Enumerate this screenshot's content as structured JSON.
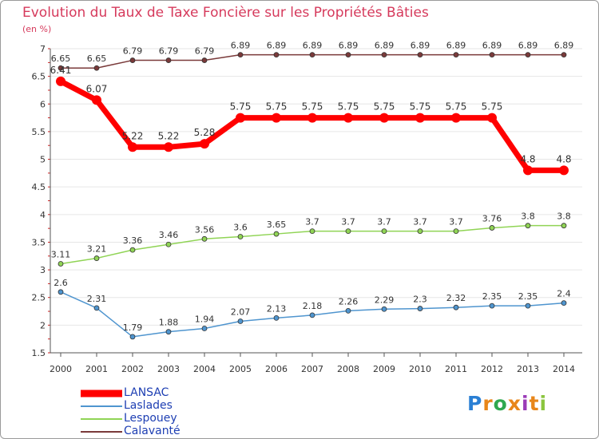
{
  "title": "Evolution du Taux de Taxe Foncière sur les Propriétés Bâties",
  "subtitle": "(en %)",
  "logo": {
    "letters": [
      "P",
      "r",
      "o",
      "x",
      "i",
      "t",
      "i"
    ],
    "colors": [
      "#2a7fd4",
      "#e8861a",
      "#2fa84f",
      "#e8861a",
      "#9b3bb8",
      "#e8861a",
      "#8bc53f"
    ]
  },
  "chart_data": {
    "type": "line",
    "title": "Evolution du Taux de Taxe Foncière sur les Propriétés Bâties",
    "ylabel": "(en %)",
    "xlabel": "",
    "x": [
      "2000",
      "2001",
      "2002",
      "2003",
      "2004",
      "2005",
      "2006",
      "2007",
      "2008",
      "2009",
      "2010",
      "2011",
      "2012",
      "2013",
      "2014"
    ],
    "ylim": [
      1.5,
      7
    ],
    "yticks": [
      "1.5",
      "2",
      "2.5",
      "3",
      "3.5",
      "4",
      "4.5",
      "5",
      "5.5",
      "6",
      "6.5",
      "7"
    ],
    "legend_position": "bottom-left",
    "series": [
      {
        "name": "LANSAC",
        "color": "#ff0000",
        "values": [
          6.41,
          6.07,
          5.22,
          5.22,
          5.28,
          5.75,
          5.75,
          5.75,
          5.75,
          5.75,
          5.75,
          5.75,
          5.75,
          4.8,
          4.8
        ],
        "labels": [
          "6.41",
          "6.07",
          "5.22",
          "5.22",
          "5.28",
          "5.75",
          "5.75",
          "5.75",
          "5.75",
          "5.75",
          "5.75",
          "5.75",
          "5.75",
          "4.8",
          "4.8"
        ]
      },
      {
        "name": "Laslades",
        "color": "#4f95cf",
        "values": [
          2.6,
          2.31,
          1.79,
          1.88,
          1.94,
          2.07,
          2.13,
          2.18,
          2.26,
          2.29,
          2.3,
          2.32,
          2.35,
          2.35,
          2.4
        ],
        "labels": [
          "2.6",
          "2.31",
          "1.79",
          "1.88",
          "1.94",
          "2.07",
          "2.13",
          "2.18",
          "2.26",
          "2.29",
          "2.3",
          "2.32",
          "2.35",
          "2.35",
          "2.4"
        ]
      },
      {
        "name": "Lespouey",
        "color": "#90d455",
        "values": [
          3.11,
          3.21,
          3.36,
          3.46,
          3.56,
          3.6,
          3.65,
          3.7,
          3.7,
          3.7,
          3.7,
          3.7,
          3.76,
          3.8,
          3.8
        ],
        "labels": [
          "3.11",
          "3.21",
          "3.36",
          "3.46",
          "3.56",
          "3.6",
          "3.65",
          "3.7",
          "3.7",
          "3.7",
          "3.7",
          "3.7",
          "3.76",
          "3.8",
          "3.8"
        ]
      },
      {
        "name": "Calavanté",
        "color": "#7a3a3a",
        "values": [
          6.65,
          6.65,
          6.79,
          6.79,
          6.79,
          6.89,
          6.89,
          6.89,
          6.89,
          6.89,
          6.89,
          6.89,
          6.89,
          6.89,
          6.89
        ],
        "labels": [
          "6.65",
          "6.65",
          "6.79",
          "6.79",
          "6.79",
          "6.89",
          "6.89",
          "6.89",
          "6.89",
          "6.89",
          "6.89",
          "6.89",
          "6.89",
          "6.89",
          "6.89"
        ]
      }
    ]
  }
}
